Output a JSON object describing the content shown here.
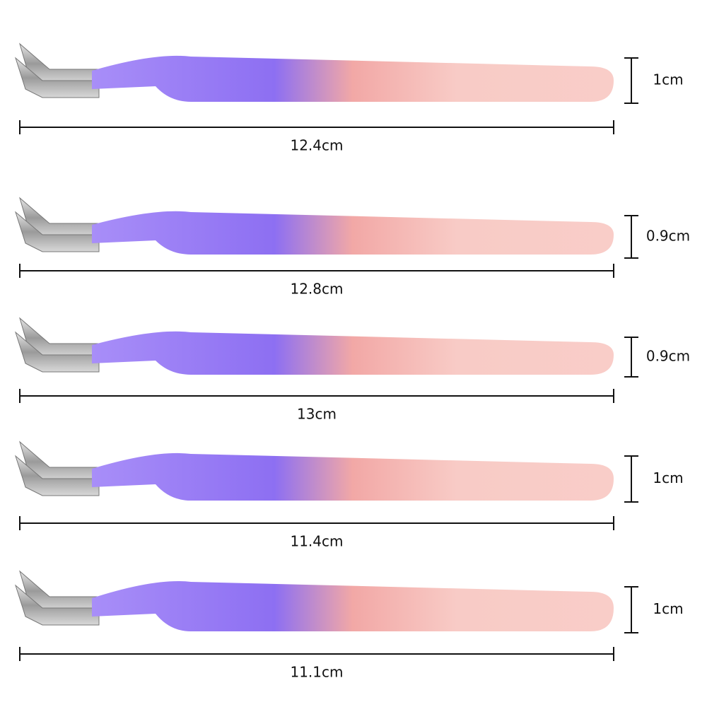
{
  "tweezers": [
    {
      "width": "1cm",
      "length": "12.4cm"
    },
    {
      "width": "0.9cm",
      "length": "12.8cm"
    },
    {
      "width": "0.9cm",
      "length": "13cm"
    },
    {
      "width": "1cm",
      "length": "11.4cm"
    },
    {
      "width": "1cm",
      "length": "11.1cm"
    }
  ]
}
